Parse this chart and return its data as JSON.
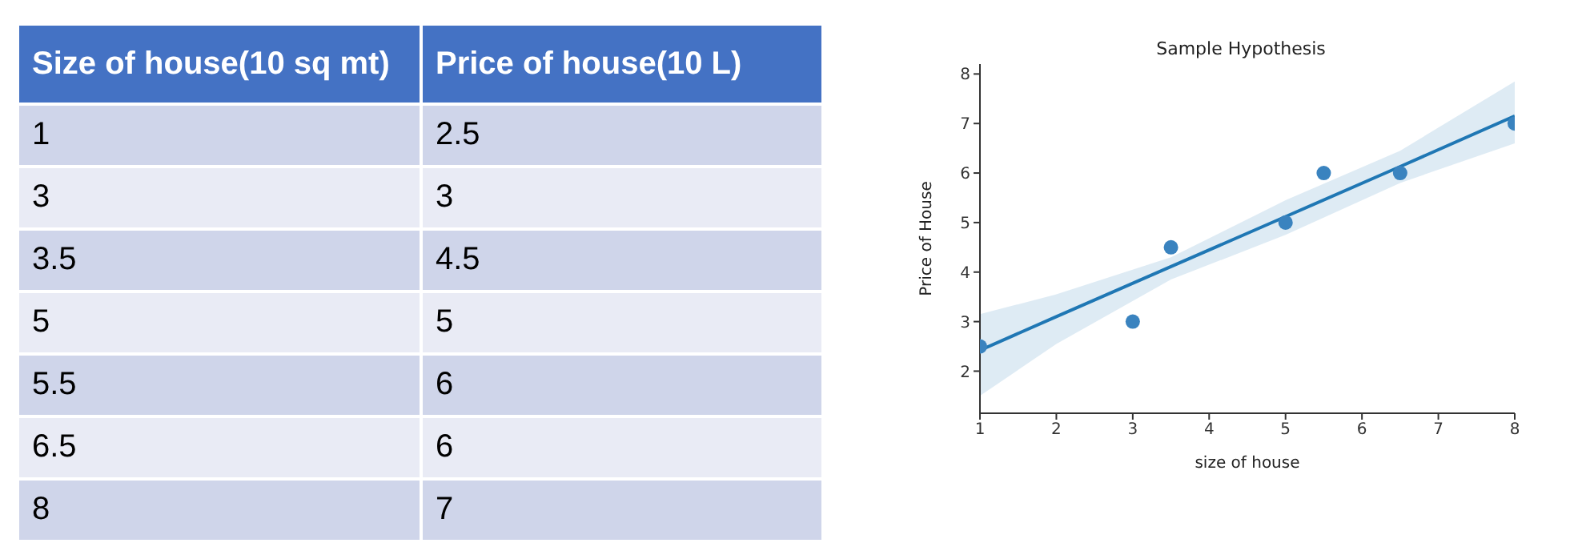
{
  "chart_data": [
    {
      "type": "other",
      "categories": [
        "Size of house(10 sq mt)",
        "Price of house(10 L)"
      ],
      "cell_labels": [
        [
          "1",
          "2.5"
        ],
        [
          "3",
          "3"
        ],
        [
          "3.5",
          "4.5"
        ],
        [
          "5",
          "5"
        ],
        [
          "5.5",
          "6"
        ],
        [
          "6.5",
          "6"
        ],
        [
          "8",
          "7"
        ]
      ]
    },
    {
      "type": "scatter",
      "title": "Sample Hypothesis",
      "xlabel": "size of house",
      "ylabel": "Price of House",
      "grid": false,
      "legend": false,
      "xlim": [
        1,
        8
      ],
      "xticks": [
        1,
        2,
        3,
        4,
        5,
        6,
        7,
        8
      ],
      "ylim": [
        1.15,
        8.2
      ],
      "yticks": [
        2,
        3,
        4,
        5,
        6,
        7,
        8
      ],
      "series": [
        {
          "color": "#3a83bf",
          "marker": "circle",
          "x": [
            1,
            3,
            3.5,
            5,
            5.5,
            6.5,
            8
          ],
          "values": [
            2.5,
            3,
            4.5,
            5,
            6,
            6,
            7
          ]
        },
        {
          "type": "line",
          "marker": "none",
          "color": "#1f77b4",
          "x": [
            1,
            2,
            3.5,
            5,
            6.5,
            8
          ],
          "values": [
            2.42,
            3.1,
            4.11,
            5.12,
            6.13,
            7.15
          ],
          "lower": [
            1.5,
            2.55,
            3.85,
            4.75,
            5.8,
            6.6
          ],
          "upper": [
            3.15,
            3.55,
            4.3,
            5.45,
            6.45,
            7.85
          ]
        }
      ]
    }
  ]
}
